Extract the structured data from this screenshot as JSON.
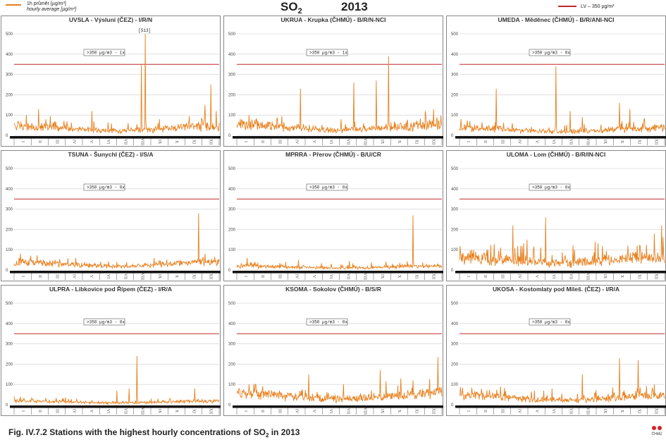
{
  "header": {
    "legend_series_cz": "1h průměr [µg/m³]",
    "legend_series_en": "hourly average [µg/m³]",
    "title_main": "SO",
    "title_sub": "2",
    "year": "2013",
    "limit_legend": "LV – 350 µg/m³"
  },
  "caption": {
    "prefix": "Fig. IV.7.2  Stations with the highest hourly concentrations of SO",
    "sub": "2",
    "suffix": " in 2013"
  },
  "logo_text": "ČHMÚ",
  "colors": {
    "series": "#E8801E",
    "limit": "#C0282D",
    "axis": "#111111",
    "grid": "#CCCCCC"
  },
  "chart_data": [
    {
      "type": "line",
      "title": "UVSLA - Výsluní (ČEZ) - I/R/N",
      "exceed_label": ">350 µg/m3 - 1x",
      "peak_label": "[513]",
      "x": [
        "I",
        "II",
        "III",
        "IV",
        "V",
        "VI",
        "VII",
        "VIII",
        "IX",
        "X",
        "XI",
        "XII"
      ],
      "ylim": [
        0,
        500
      ],
      "yticks": [
        0,
        100,
        200,
        300,
        400,
        500
      ],
      "limit": 350,
      "base": 25,
      "noise": 18,
      "spikes": [
        [
          0.06,
          100
        ],
        [
          0.12,
          130
        ],
        [
          0.38,
          120
        ],
        [
          0.62,
          350
        ],
        [
          0.64,
          500
        ],
        [
          0.71,
          80
        ],
        [
          0.93,
          150
        ],
        [
          0.96,
          250
        ],
        [
          0.985,
          120
        ]
      ]
    },
    {
      "type": "line",
      "title": "UKRUA - Krupka (ČHMÚ) - B/R/N-NCI",
      "exceed_label": ">350 µg/m3 - 1x",
      "peak_label": "",
      "x": [
        "I",
        "II",
        "III",
        "IV",
        "V",
        "VI",
        "VII",
        "VIII",
        "IX",
        "X",
        "XI",
        "XII"
      ],
      "ylim": [
        0,
        500
      ],
      "yticks": [
        0,
        100,
        200,
        300,
        400,
        500
      ],
      "limit": 350,
      "base": 30,
      "noise": 20,
      "spikes": [
        [
          0.06,
          100
        ],
        [
          0.31,
          230
        ],
        [
          0.57,
          260
        ],
        [
          0.68,
          270
        ],
        [
          0.74,
          390
        ],
        [
          0.92,
          120
        ],
        [
          0.96,
          130
        ]
      ]
    },
    {
      "type": "line",
      "title": "UMEDA - Měděnec (ČHMÚ) - B/R/ANI-NCI",
      "exceed_label": ">350 µg/m3 - 0x",
      "peak_label": "",
      "x": [
        "I",
        "II",
        "III",
        "IV",
        "V",
        "VI",
        "VII",
        "VIII",
        "IX",
        "X",
        "XI",
        "XII"
      ],
      "ylim": [
        0,
        500
      ],
      "yticks": [
        0,
        100,
        200,
        300,
        400,
        500
      ],
      "limit": 350,
      "base": 20,
      "noise": 16,
      "spikes": [
        [
          0.05,
          70
        ],
        [
          0.18,
          230
        ],
        [
          0.47,
          340
        ],
        [
          0.54,
          120
        ],
        [
          0.6,
          90
        ],
        [
          0.78,
          160
        ],
        [
          0.83,
          130
        ],
        [
          0.9,
          80
        ]
      ]
    },
    {
      "type": "line",
      "title": "TSUNA - Šunychl (ČEZ) - I/S/A",
      "exceed_label": ">350 µg/m3 - 0x",
      "peak_label": "",
      "x": [
        "I",
        "II",
        "III",
        "IV",
        "V",
        "VI",
        "VII",
        "VIII",
        "IX",
        "X",
        "XI",
        "XII"
      ],
      "ylim": [
        0,
        500
      ],
      "yticks": [
        0,
        100,
        200,
        300,
        400,
        500
      ],
      "limit": 350,
      "base": 22,
      "noise": 12,
      "spikes": [
        [
          0.03,
          80
        ],
        [
          0.08,
          70
        ],
        [
          0.3,
          60
        ],
        [
          0.5,
          40
        ],
        [
          0.9,
          280
        ],
        [
          0.93,
          80
        ]
      ]
    },
    {
      "type": "line",
      "title": "MPRRA - Přerov (ČHMÚ) - B/U/CR",
      "exceed_label": ">350 µg/m3 - 0x",
      "peak_label": "",
      "x": [
        "I",
        "II",
        "III",
        "IV",
        "V",
        "VI",
        "VII",
        "VIII",
        "IX",
        "X",
        "XI",
        "XII"
      ],
      "ylim": [
        0,
        500
      ],
      "yticks": [
        0,
        100,
        200,
        300,
        400,
        500
      ],
      "limit": 350,
      "base": 10,
      "noise": 10,
      "spikes": [
        [
          0.05,
          60
        ],
        [
          0.3,
          50
        ],
        [
          0.55,
          45
        ],
        [
          0.86,
          270
        ]
      ]
    },
    {
      "type": "line",
      "title": "ULOMA - Lom (ČHMÚ) - B/R/IN-NCI",
      "exceed_label": ">350 µg/m3 - 0x",
      "peak_label": "",
      "x": [
        "I",
        "II",
        "III",
        "IV",
        "V",
        "VI",
        "VII",
        "VIII",
        "IX",
        "X",
        "XI",
        "XII"
      ],
      "ylim": [
        0,
        500
      ],
      "yticks": [
        0,
        100,
        200,
        300,
        400,
        500
      ],
      "limit": 350,
      "base": 30,
      "noise": 35,
      "spikes": [
        [
          0.26,
          220
        ],
        [
          0.33,
          150
        ],
        [
          0.42,
          260
        ],
        [
          0.56,
          100
        ],
        [
          0.66,
          140
        ],
        [
          0.88,
          120
        ],
        [
          0.95,
          180
        ],
        [
          0.985,
          220
        ]
      ]
    },
    {
      "type": "line",
      "title": "ULPRA - Libkovice pod Řípem (ČEZ) - I/R/A",
      "exceed_label": ">350 µg/m3 - 0x",
      "peak_label": "",
      "x": [
        "I",
        "II",
        "III",
        "IV",
        "V",
        "VI",
        "VII",
        "VIII",
        "IX",
        "X",
        "XI",
        "XII"
      ],
      "ylim": [
        0,
        500
      ],
      "yticks": [
        0,
        100,
        200,
        300,
        400,
        500
      ],
      "limit": 350,
      "base": 10,
      "noise": 8,
      "spikes": [
        [
          0.03,
          40
        ],
        [
          0.5,
          70
        ],
        [
          0.56,
          80
        ],
        [
          0.6,
          240
        ],
        [
          0.88,
          80
        ]
      ]
    },
    {
      "type": "line",
      "title": "KSOMA - Sokolov (ČHMÚ) - B/S/R",
      "exceed_label": ">350 µg/m3 - 0x",
      "peak_label": "",
      "x": [
        "I",
        "II",
        "III",
        "IV",
        "V",
        "VI",
        "VII",
        "VIII",
        "IX",
        "X",
        "XI",
        "XII"
      ],
      "ylim": [
        0,
        500
      ],
      "yticks": [
        0,
        100,
        200,
        300,
        400,
        500
      ],
      "limit": 350,
      "base": 30,
      "noise": 25,
      "spikes": [
        [
          0.06,
          100
        ],
        [
          0.35,
          150
        ],
        [
          0.52,
          100
        ],
        [
          0.7,
          170
        ],
        [
          0.8,
          130
        ],
        [
          0.86,
          120
        ],
        [
          0.98,
          235
        ]
      ]
    },
    {
      "type": "line",
      "title": "UKOSA - Kostomlaty pod Mileš. (ČEZ) - I/R/A",
      "exceed_label": ">350 µg/m3 - 0x",
      "peak_label": "",
      "x": [
        "I",
        "II",
        "III",
        "IV",
        "V",
        "VI",
        "VII",
        "VIII",
        "IX",
        "X",
        "XI",
        "XII"
      ],
      "ylim": [
        0,
        500
      ],
      "yticks": [
        0,
        100,
        200,
        300,
        400,
        500
      ],
      "limit": 350,
      "base": 25,
      "noise": 18,
      "spikes": [
        [
          0.2,
          90
        ],
        [
          0.45,
          80
        ],
        [
          0.6,
          150
        ],
        [
          0.78,
          230
        ],
        [
          0.87,
          220
        ],
        [
          0.95,
          100
        ]
      ]
    }
  ]
}
